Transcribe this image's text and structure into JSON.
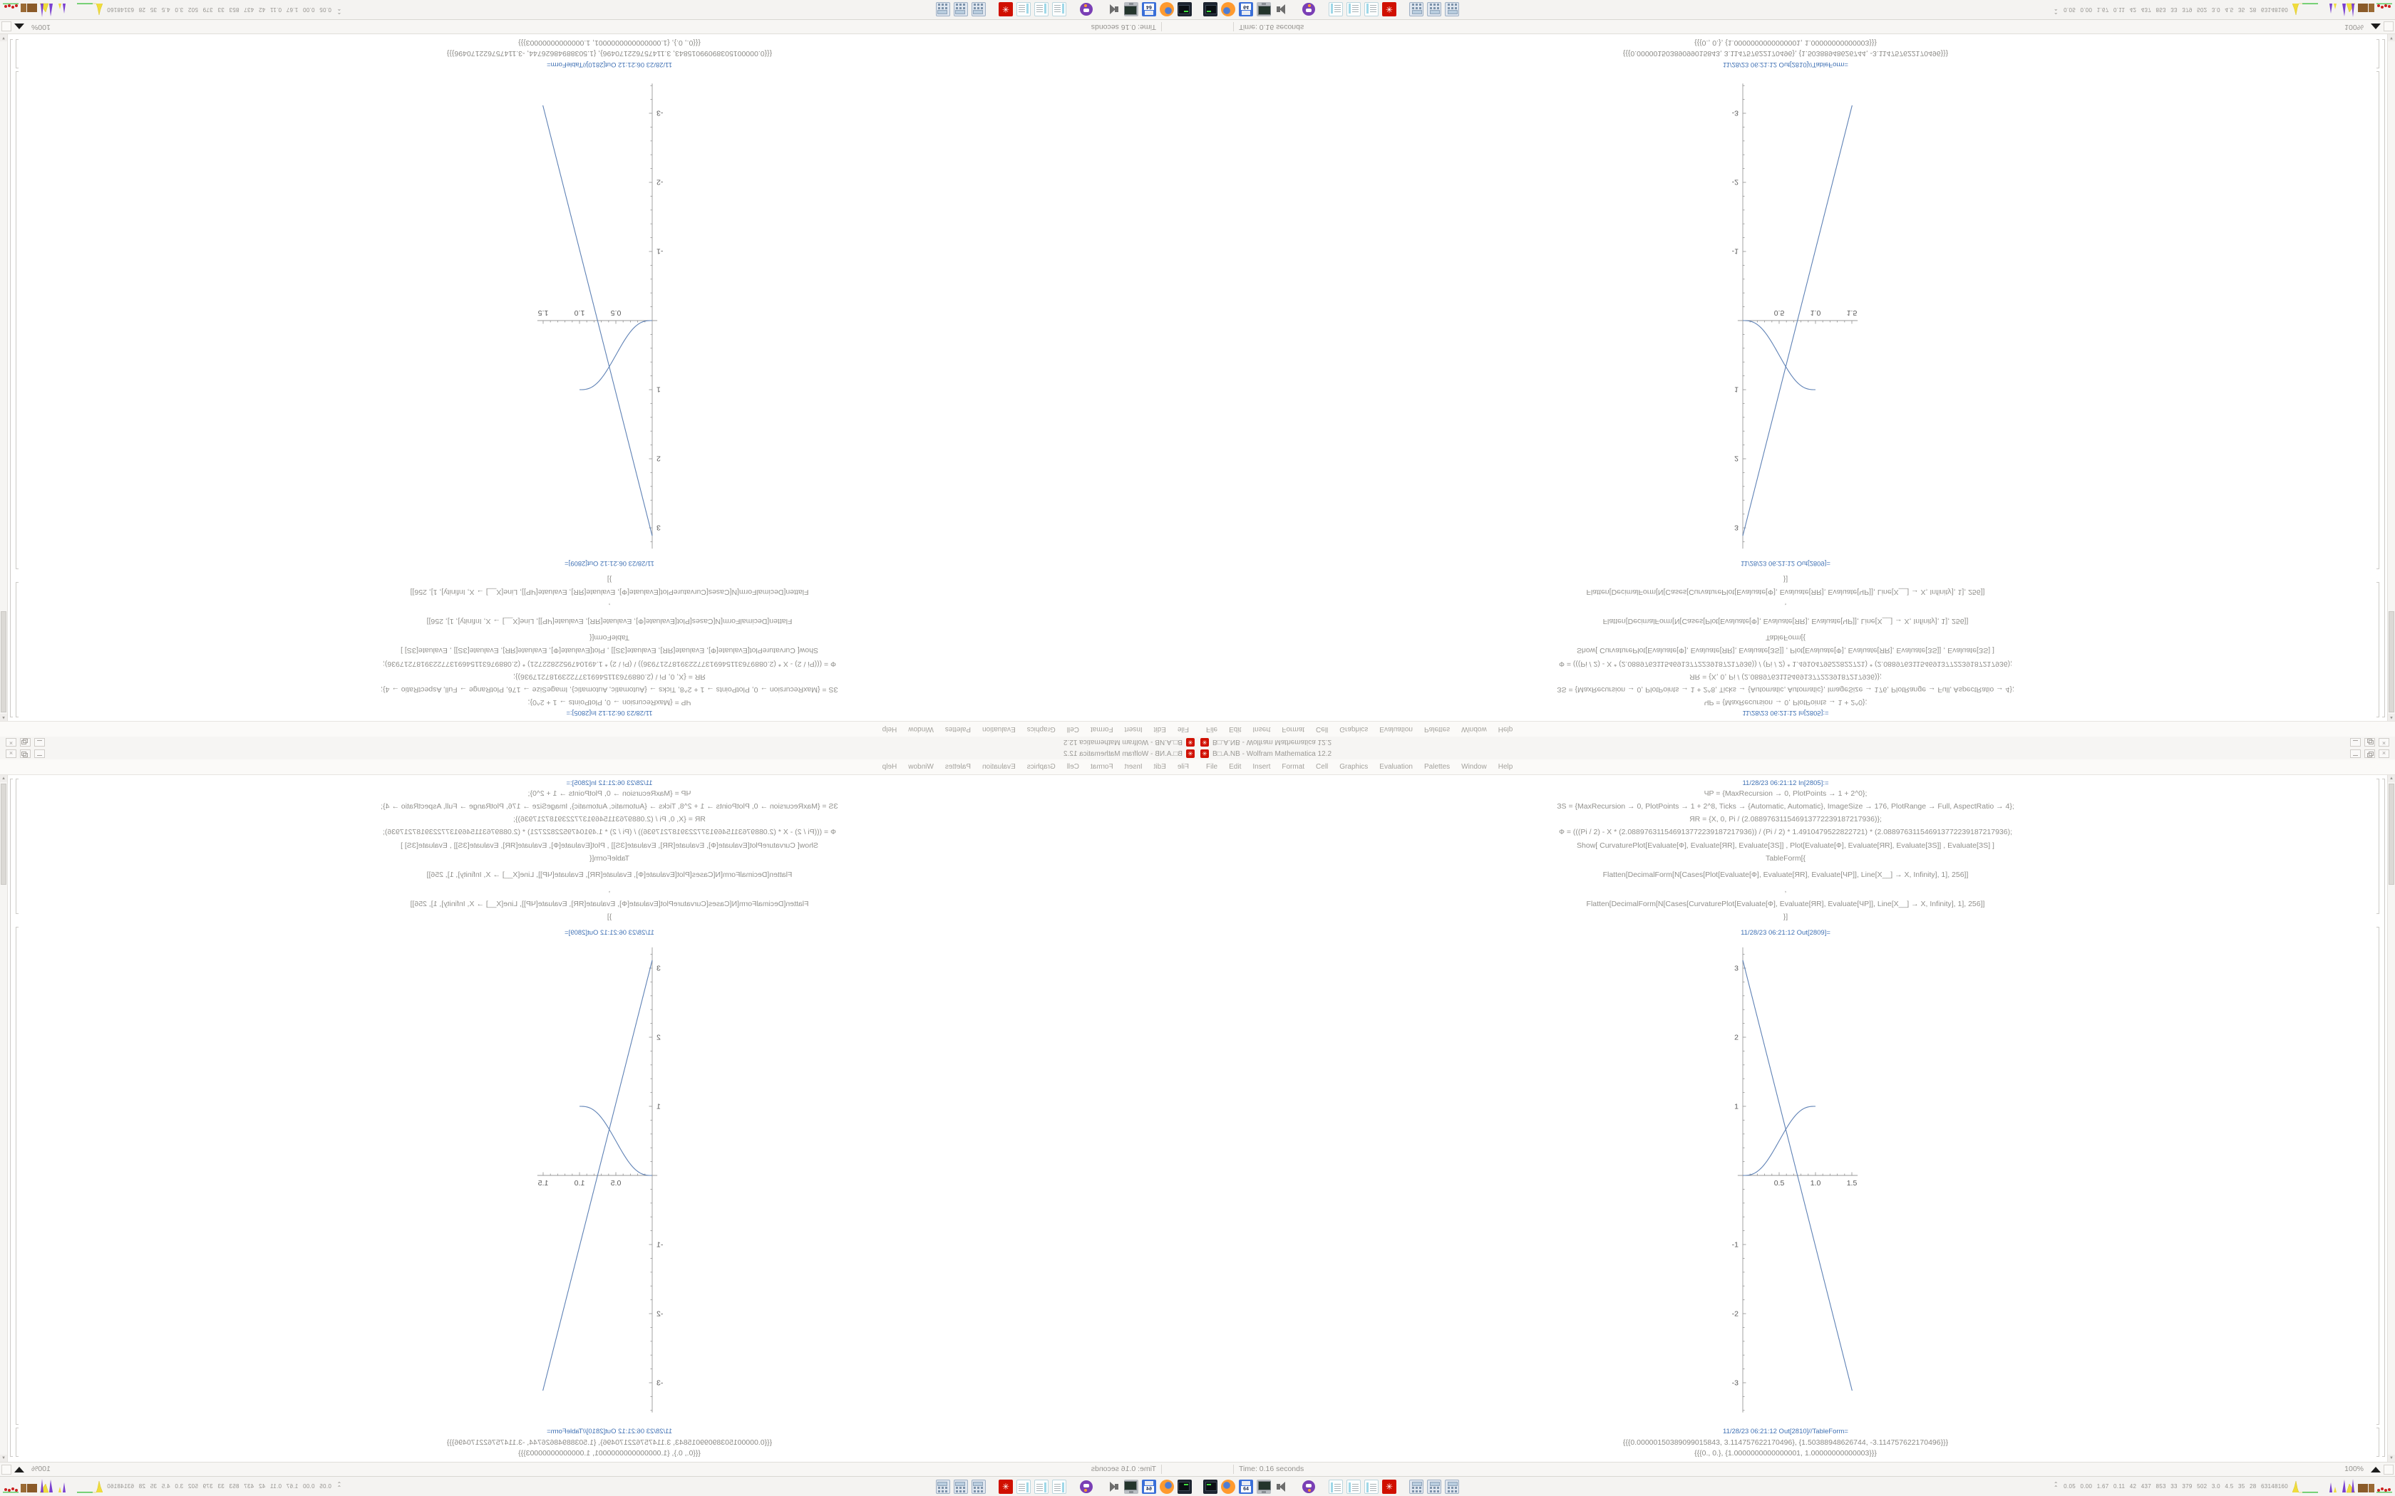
{
  "window": {
    "title": "B□.A.NB - Wolfram Mathematica 12.2",
    "close_glyph": "×"
  },
  "menu": {
    "items": [
      "File",
      "Edit",
      "Insert",
      "Format",
      "Cell",
      "Graphics",
      "Evaluation",
      "Palettes",
      "Window",
      "Help"
    ]
  },
  "notebook": {
    "in_label": "11/28/23 06:21:12 In[2805]:=",
    "code": [
      "ЧP = {MaxRecursion → 0, PlotPoints → 1 + 2^0};",
      "ЗS = {MaxRecursion → 0, PlotPoints → 1 + 2^8, Ticks → {Automatic, Automatic}, ImageSize → 176, PlotRange → Full, AspectRatio → 4};",
      "ЯR = {X, 0, Pi / (2.088976311546913772239187217936)};",
      "Ф = (((Pi / 2) - X * (2.088976311546913772239187217936)) / (Pi / 2) * 1.4910479522822721) * (2.088976311546913772239187217936);",
      "Show[  CurvaturePlot[Evaluate[Ф], Evaluate[ЯR], Evaluate[ЗS]]  ,   Plot[Evaluate[Ф], Evaluate[ЯR], Evaluate[ЗS]]  ,   Evaluate[ЗS]  ]",
      "TableForm[{",
      "Flatten[DecimalForm[N[Cases[Plot[Evaluate[Ф], Evaluate[ЯR], Evaluate[ЧP]], Line[X__] → X, Infinity], 1], 256]]",
      ",",
      "Flatten[DecimalForm[N[Cases[CurvaturePlot[Evaluate[Ф], Evaluate[ЯR], Evaluate[ЧP]], Line[X__] → X, Infinity], 1], 256]]",
      "}]"
    ],
    "out_plot_label": "11/28/23 06:21:12 Out[2809]=",
    "out_table_label": "11/28/23 06:21:12 Out[2810]//TableForm=",
    "table_rows": [
      "{{{0.00000150389099015843, 3.114757622170496}, {1.50388948626744, -3.114757622170496}}}",
      "{{{0., 0.}, {1.0000000000000001, 1.00000000000003}}}"
    ]
  },
  "status": {
    "time": "Time: 0.16 seconds",
    "zoom": "100%"
  },
  "taskbar": {
    "floppy_label": "64",
    "mathematica_glyph": "✳",
    "tray_stats": "0.05 0.00 1.67 0.11 42 437 853 33 379 502 3.0 4.5 35 28 63148160",
    "chevron": "⌃"
  },
  "icons": {
    "window_icon_glyph": "✳"
  },
  "chart_data": {
    "type": "line",
    "title": "Out[2809]= Show[CurvaturePlot, Plot] — ImageSize 176, AspectRatio 4, PlotRange Full",
    "xlabel": "",
    "ylabel": "",
    "xlim": [
      -0.07,
      1.58
    ],
    "ylim": [
      -3.43,
      3.3
    ],
    "x_ticks": [
      0.5,
      1.0,
      1.5
    ],
    "x_tick_labels": [
      "0.5",
      "1.0",
      "1.5"
    ],
    "x_minor_step": 0.1,
    "y_ticks": [
      3,
      2,
      1,
      -1,
      -2,
      -3
    ],
    "y_tick_labels": [
      "3",
      "2",
      "1",
      "-1",
      "-2",
      "-3"
    ],
    "y_minor_step": 0.2,
    "grid": false,
    "legend": false,
    "line_color": "#5e81b5",
    "axis_color": "#999999",
    "tick_label_color": "#5a5a5a",
    "series": [
      {
        "name": "Plot[Ф]",
        "shape": "straight",
        "points": [
          [
            1.50389099015843e-06,
            3.114757622170496
          ],
          [
            1.50388948626744,
            -3.114757622170496
          ]
        ]
      },
      {
        "name": "CurvaturePlot[Ф]",
        "shape": "sigmoid",
        "points": [
          [
            0.0,
            0.0
          ],
          [
            1.0,
            1.0
          ]
        ]
      }
    ]
  }
}
